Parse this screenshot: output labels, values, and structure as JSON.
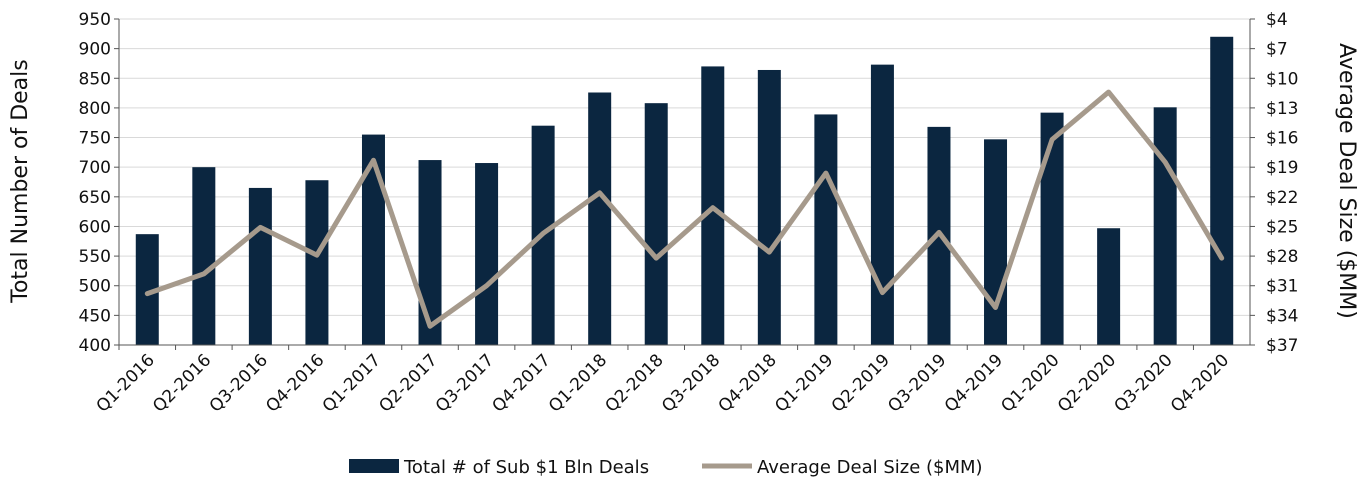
{
  "chart_data": {
    "type": "bar",
    "title": "",
    "xlabel": "",
    "ylabel": "Total Number of Deals",
    "y2label": "Average Deal Size ($MM)",
    "ylim": [
      400,
      950
    ],
    "y2lim": [
      4,
      37
    ],
    "y2_inverted": true,
    "y_ticks": [
      "400",
      "450",
      "500",
      "550",
      "600",
      "650",
      "700",
      "750",
      "800",
      "850",
      "900",
      "950"
    ],
    "y2_ticks": [
      "$4",
      "$7",
      "$10",
      "$13",
      "$16",
      "$19",
      "$22",
      "$25",
      "$28",
      "$31",
      "$34",
      "$37"
    ],
    "grid": true,
    "legend_position": "bottom",
    "categories": [
      "Q1-2016",
      "Q2-2016",
      "Q3-2016",
      "Q4-2016",
      "Q1-2017",
      "Q2-2017",
      "Q3-2017",
      "Q4-2017",
      "Q1-2018",
      "Q2-2018",
      "Q3-2018",
      "Q4-2018",
      "Q1-2019",
      "Q2-2019",
      "Q3-2019",
      "Q4-2019",
      "Q1-2020",
      "Q2-2020",
      "Q3-2020",
      "Q4-2020"
    ],
    "series": [
      {
        "name": "Total # of Sub $1 Bln Deals",
        "type": "bar",
        "axis": "left",
        "color": "#0b2640",
        "values": [
          587,
          700,
          665,
          678,
          755,
          712,
          707,
          770,
          826,
          808,
          870,
          864,
          789,
          873,
          768,
          747,
          792,
          597,
          801,
          920
        ]
      },
      {
        "name": "Average Deal Size ($MM)",
        "type": "line",
        "axis": "right",
        "color": "#a69a8c",
        "values": [
          31.8,
          29.8,
          25.1,
          27.9,
          18.3,
          35.1,
          31.0,
          25.7,
          21.6,
          28.2,
          23.1,
          27.6,
          19.6,
          31.7,
          25.6,
          33.2,
          16.2,
          11.4,
          18.5,
          28.2
        ]
      }
    ]
  }
}
